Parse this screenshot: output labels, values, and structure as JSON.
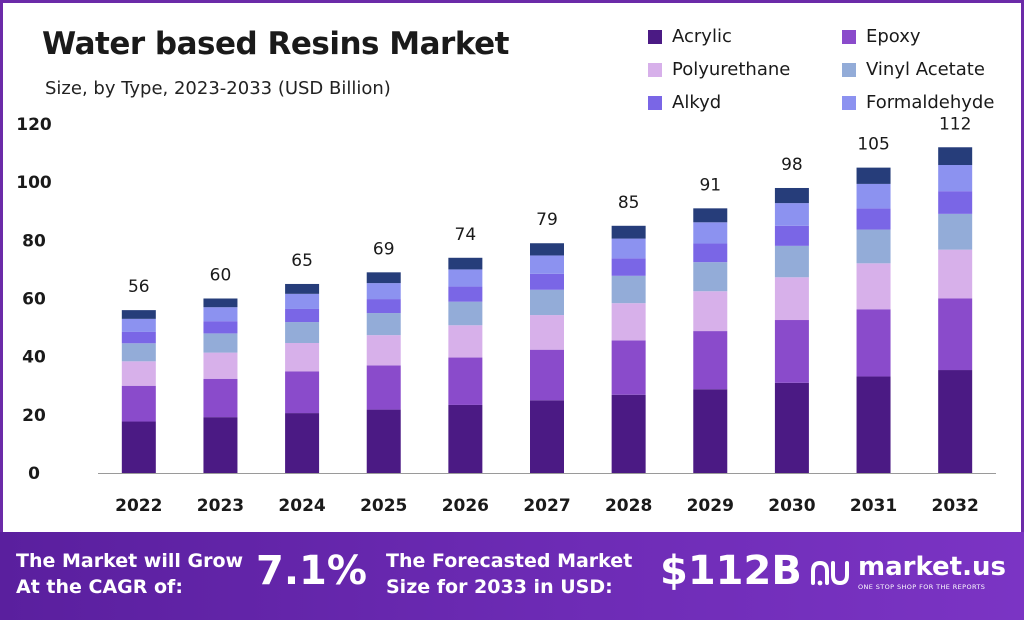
{
  "title": "Water based Resins Market",
  "subtitle": "Size, by Type, 2023-2033 (USD Billion)",
  "colors": {
    "acrylic": "#4b1a84",
    "epoxy": "#8a4bcb",
    "polyurethane": "#d7b0ea",
    "vinyl_acetate": "#93acd8",
    "alkyd": "#7a66e6",
    "formaldehyde": "#8c92f0",
    "top": "#263d7a",
    "footer": "#5a1f9e"
  },
  "legend": [
    {
      "label": "Acrylic",
      "color": "#4b1a84"
    },
    {
      "label": "Epoxy",
      "color": "#8a4bcb"
    },
    {
      "label": "Polyurethane",
      "color": "#d7b0ea"
    },
    {
      "label": "Vinyl Acetate",
      "color": "#93acd8"
    },
    {
      "label": "Alkyd",
      "color": "#7a66e6"
    },
    {
      "label": "Formaldehyde",
      "color": "#8c92f0"
    }
  ],
  "chart_data": {
    "type": "bar",
    "stacked": true,
    "title": "Water based Resins Market",
    "subtitle": "Size, by Type, 2023-2033 (USD Billion)",
    "xlabel": "",
    "ylabel": "",
    "ylim": [
      0,
      120
    ],
    "yticks": [
      0,
      20,
      40,
      60,
      80,
      100,
      120
    ],
    "categories": [
      "2022",
      "2023",
      "2024",
      "2025",
      "2026",
      "2027",
      "2028",
      "2029",
      "2030",
      "2031",
      "2032"
    ],
    "totals": [
      56,
      60,
      65,
      69,
      74,
      79,
      85,
      91,
      98,
      105,
      112
    ],
    "series": [
      {
        "name": "Acrylic",
        "color": "#4b1a84",
        "values": [
          17.7,
          19.2,
          20.6,
          21.8,
          23.4,
          25.0,
          26.9,
          28.8,
          31.0,
          33.2,
          35.4
        ]
      },
      {
        "name": "Epoxy",
        "color": "#8a4bcb",
        "values": [
          12.3,
          13.2,
          14.3,
          15.2,
          16.3,
          17.4,
          18.7,
          20.0,
          21.6,
          23.1,
          24.6
        ]
      },
      {
        "name": "Polyurethane",
        "color": "#d7b0ea",
        "values": [
          8.4,
          9.0,
          9.8,
          10.4,
          11.1,
          11.9,
          12.8,
          13.7,
          14.7,
          15.8,
          16.8
        ]
      },
      {
        "name": "Vinyl Acetate",
        "color": "#93acd8",
        "values": [
          6.2,
          6.6,
          7.2,
          7.6,
          8.1,
          8.7,
          9.4,
          10.0,
          10.8,
          11.6,
          12.3
        ]
      },
      {
        "name": "Alkyd",
        "color": "#7a66e6",
        "values": [
          3.9,
          4.2,
          4.5,
          4.8,
          5.2,
          5.5,
          6.0,
          6.4,
          6.9,
          7.3,
          7.8
        ]
      },
      {
        "name": "Formaldehyde",
        "color": "#8c92f0",
        "values": [
          4.5,
          4.8,
          5.2,
          5.5,
          5.9,
          6.3,
          6.8,
          7.3,
          7.8,
          8.4,
          9.0
        ]
      },
      {
        "name": "",
        "color": "#263d7a",
        "values": [
          3.0,
          3.0,
          3.4,
          3.7,
          4.0,
          4.2,
          4.4,
          4.8,
          5.2,
          5.6,
          6.1
        ]
      }
    ]
  },
  "footer": {
    "cagr_text_1": "The Market will Grow",
    "cagr_text_2": "At the CAGR of:",
    "cagr_value": "7.1%",
    "forecast_text_1": "The Forecasted Market",
    "forecast_text_2": "Size for 2033 in USD:",
    "forecast_value": "$112B",
    "brand_name": "market.us",
    "brand_tagline": "ONE STOP SHOP FOR THE REPORTS"
  }
}
